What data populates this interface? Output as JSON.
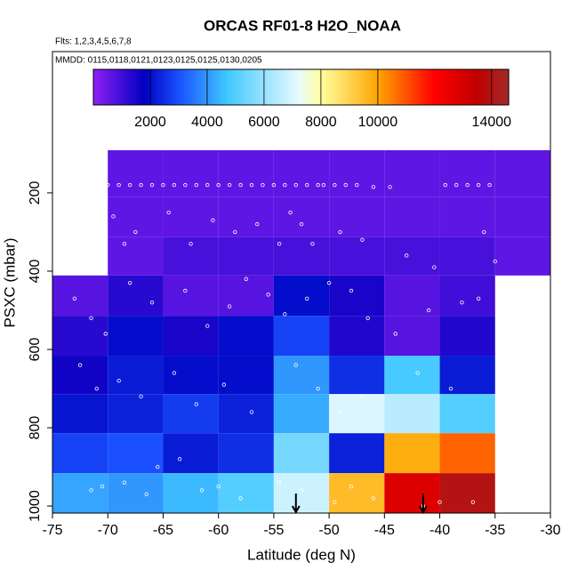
{
  "chart_data": {
    "type": "heatmap",
    "title": "ORCAS RF01-8 H2O_NOAA",
    "subtitle": "Flts: 1,2,3,4,5,6,7,8",
    "annotation": "MMDD: 0115,0118,0121,0123,0125,0125,0130,0205",
    "x_label": "Latitude (deg N)",
    "y_label": "PSXC (mbar)",
    "xlim": [
      -75,
      -30
    ],
    "ylim": [
      1018,
      -161
    ],
    "xticks": [
      -75,
      -70,
      -65,
      -60,
      -55,
      -50,
      -45,
      -40,
      -35,
      -30
    ],
    "yticks": [
      200,
      400,
      600,
      800,
      1000
    ],
    "x_edges": [
      -75,
      -70,
      -65,
      -60,
      -55,
      -50,
      -45,
      -40,
      -35,
      -30
    ],
    "y_edges": [
      91,
      211,
      313,
      411,
      514,
      616,
      714,
      814,
      916,
      1018
    ],
    "values": [
      [
        null,
        600,
        600,
        600,
        600,
        600,
        600,
        600,
        600
      ],
      [
        null,
        600,
        600,
        600,
        600,
        600,
        600,
        600,
        600
      ],
      [
        null,
        600,
        900,
        900,
        900,
        900,
        900,
        900,
        600
      ],
      [
        700,
        1300,
        700,
        700,
        2000,
        1500,
        700,
        1000,
        null
      ],
      [
        1300,
        2000,
        1500,
        2000,
        2800,
        1400,
        700,
        1400,
        null
      ],
      [
        1600,
        2200,
        2000,
        2000,
        4000,
        2500,
        4800,
        2200,
        null
      ],
      [
        2100,
        2300,
        2700,
        2300,
        4300,
        7000,
        6500,
        5000,
        null
      ],
      [
        2800,
        3000,
        2200,
        2500,
        5500,
        2300,
        9800,
        10800,
        null
      ],
      [
        4200,
        4000,
        4500,
        5000,
        6800,
        9500,
        12800,
        14000,
        null
      ]
    ],
    "colormap": [
      {
        "value": 0,
        "color": "#8f1ff5"
      },
      {
        "value": 1800,
        "color": "#0000c0"
      },
      {
        "value": 3000,
        "color": "#1a50ff"
      },
      {
        "value": 4700,
        "color": "#40c8ff"
      },
      {
        "value": 7200,
        "color": "#e8faff"
      },
      {
        "value": 8000,
        "color": "#ffffa0"
      },
      {
        "value": 10000,
        "color": "#ffa500"
      },
      {
        "value": 12000,
        "color": "#ff0000"
      },
      {
        "value": 13500,
        "color": "#c00000"
      },
      {
        "value": 14600,
        "color": "#a52a2a"
      }
    ],
    "colorbar_lim": [
      0,
      14600
    ],
    "colorbar_ticks": [
      2000,
      4000,
      6000,
      8000,
      10000,
      14000
    ],
    "points": {
      "lat": [
        -70,
        -69,
        -68,
        -67,
        -66,
        -65,
        -64,
        -63,
        -62,
        -61,
        -60,
        -59,
        -58,
        -57,
        -56,
        -55,
        -54,
        -53,
        -52,
        -51,
        -50.5,
        -49.5,
        -48.5,
        -47.5,
        -46,
        -44.5,
        -39.5,
        -38.5,
        -37.5,
        -36.5,
        -35.5,
        -69.5,
        -68.5,
        -67.5,
        -64.5,
        -62.5,
        -60.5,
        -58.5,
        -56.5,
        -54.5,
        -53.5,
        -52.5,
        -51.5,
        -49,
        -47,
        -43,
        -40.5,
        -36,
        -35,
        -73,
        -71.5,
        -70.2,
        -68,
        -66,
        -63,
        -61,
        -59,
        -57.5,
        -55.5,
        -54,
        -52,
        -50,
        -48,
        -46.5,
        -44,
        -41,
        -38,
        -36.5,
        -72.5,
        -71,
        -69,
        -67,
        -64,
        -62,
        -59.5,
        -57,
        -53,
        -51,
        -49,
        -47,
        -42,
        -39,
        -71.5,
        -70.5,
        -68.5,
        -66.5,
        -65.5,
        -63.5,
        -61.5,
        -60,
        -58,
        -54.5,
        -52.5,
        -49.5,
        -48,
        -46,
        -41.5,
        -40,
        -37
      ],
      "p": [
        180,
        180,
        180,
        180,
        180,
        180,
        180,
        180,
        180,
        180,
        180,
        180,
        180,
        180,
        180,
        180,
        180,
        180,
        180,
        180,
        180,
        180,
        180,
        180,
        185,
        185,
        180,
        180,
        180,
        180,
        180,
        260,
        330,
        300,
        250,
        330,
        270,
        300,
        280,
        330,
        250,
        280,
        330,
        300,
        320,
        360,
        390,
        300,
        375,
        470,
        520,
        560,
        430,
        480,
        450,
        540,
        490,
        420,
        460,
        510,
        470,
        430,
        450,
        520,
        560,
        500,
        480,
        470,
        640,
        700,
        680,
        720,
        660,
        740,
        690,
        760,
        640,
        700,
        760,
        720,
        660,
        700,
        960,
        950,
        940,
        970,
        900,
        880,
        960,
        950,
        980,
        940,
        960,
        990,
        950,
        980,
        1000,
        990,
        990
      ]
    },
    "point_color": "#ffffff",
    "arrows_lat": [
      -53,
      -41.5
    ]
  }
}
